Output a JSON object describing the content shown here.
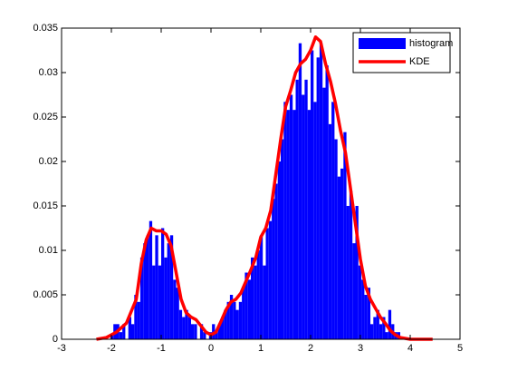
{
  "chart_data": {
    "type": "histogram",
    "xlim": [
      -3,
      5
    ],
    "xticks": [
      -3,
      -2,
      -1,
      0,
      1,
      2,
      3,
      4,
      5
    ],
    "ylim": [
      0,
      0.035
    ],
    "yticks": [
      0,
      0.005,
      0.01,
      0.015,
      0.02,
      0.025,
      0.03,
      0.035
    ],
    "legend": "northeast",
    "series": [
      {
        "name": "histogram",
        "type": "histogram",
        "color": "#0000ff",
        "bins": [
          -2.2,
          -2.14,
          -2.08,
          -2.02,
          -1.96,
          -1.9,
          -1.84,
          -1.78,
          -1.72,
          -1.66,
          -1.6,
          -1.54,
          -1.48,
          -1.42,
          -1.36,
          -1.3,
          -1.24,
          -1.18,
          -1.12,
          -1.06,
          -1,
          -0.94,
          -0.88,
          -0.82,
          -0.76,
          -0.7,
          -0.64,
          -0.58,
          -0.52,
          -0.46,
          -0.4,
          -0.34,
          -0.28,
          -0.22,
          -0.16,
          -0.1,
          -0.04,
          0.02,
          0.08,
          0.14,
          0.2,
          0.26,
          0.32,
          0.38,
          0.44,
          0.5,
          0.56,
          0.62,
          0.68,
          0.74,
          0.8,
          0.86,
          0.92,
          0.98,
          1.04,
          1.1,
          1.16,
          1.22,
          1.28,
          1.34,
          1.4,
          1.46,
          1.52,
          1.58,
          1.64,
          1.7,
          1.76,
          1.82,
          1.88,
          1.94,
          2,
          2.06,
          2.12,
          2.18,
          2.24,
          2.3,
          2.36,
          2.42,
          2.48,
          2.54,
          2.6,
          2.66,
          2.72,
          2.78,
          2.84,
          2.9,
          2.96,
          3.02,
          3.08,
          3.14,
          3.2,
          3.26,
          3.32,
          3.38,
          3.44,
          3.5,
          3.56,
          3.62,
          3.68,
          3.74,
          3.8
        ],
        "values": [
          0,
          0,
          0,
          0.0005,
          0.0017,
          0.0017,
          0.0008,
          0.0017,
          0,
          0.0025,
          0.0017,
          0.005,
          0.0042,
          0.0092,
          0.0108,
          0.0117,
          0.0133,
          0.0083,
          0.0117,
          0.0083,
          0.0125,
          0.0092,
          0.0108,
          0.0117,
          0.0067,
          0.0058,
          0.0033,
          0.0025,
          0.0033,
          0.0025,
          0.0017,
          0.0017,
          0,
          0.0017,
          0.0008,
          0,
          0.0008,
          0.0017,
          0.0008,
          0.0017,
          0.0025,
          0.0033,
          0.0042,
          0.005,
          0.0042,
          0.0033,
          0.0042,
          0.0058,
          0.0075,
          0.0067,
          0.0092,
          0.0083,
          0.01,
          0.0117,
          0.0083,
          0.0125,
          0.0133,
          0.0158,
          0.0175,
          0.02,
          0.0225,
          0.0267,
          0.0258,
          0.0275,
          0.0258,
          0.0292,
          0.0333,
          0.0275,
          0.0292,
          0.0258,
          0.0325,
          0.0267,
          0.0317,
          0.0333,
          0.0283,
          0.0308,
          0.0242,
          0.0267,
          0.0225,
          0.0183,
          0.0192,
          0.0233,
          0.015,
          0.0167,
          0.0108,
          0.015,
          0.0083,
          0.0067,
          0.005,
          0.0058,
          0.0017,
          0.0025,
          0.0033,
          0.0017,
          0.0025,
          0.0008,
          0.0033,
          0.0017,
          0.0008,
          0.0008
        ]
      },
      {
        "name": "KDE",
        "type": "line",
        "color": "#ff0000",
        "x": [
          -2.3,
          -2.1,
          -1.9,
          -1.7,
          -1.5,
          -1.4,
          -1.3,
          -1.2,
          -1.1,
          -1,
          -0.9,
          -0.8,
          -0.7,
          -0.6,
          -0.5,
          -0.4,
          -0.3,
          -0.2,
          -0.1,
          0,
          0.1,
          0.2,
          0.3,
          0.4,
          0.5,
          0.6,
          0.7,
          0.8,
          0.9,
          1,
          1.1,
          1.2,
          1.3,
          1.4,
          1.5,
          1.6,
          1.7,
          1.8,
          1.9,
          2,
          2.1,
          2.2,
          2.3,
          2.4,
          2.5,
          2.6,
          2.7,
          2.8,
          2.9,
          3,
          3.1,
          3.2,
          3.3,
          3.4,
          3.5,
          3.6,
          3.7,
          3.8,
          4,
          4.45
        ],
        "values": [
          0,
          0.0002,
          0.0008,
          0.0018,
          0.0045,
          0.0085,
          0.0112,
          0.0125,
          0.0122,
          0.0122,
          0.0118,
          0.0105,
          0.0075,
          0.0045,
          0.003,
          0.0025,
          0.0022,
          0.0015,
          0.0008,
          0.0005,
          0.0008,
          0.002,
          0.0033,
          0.0042,
          0.0045,
          0.0052,
          0.0065,
          0.0078,
          0.0092,
          0.0115,
          0.0125,
          0.0145,
          0.0185,
          0.0225,
          0.0262,
          0.028,
          0.03,
          0.031,
          0.0315,
          0.0325,
          0.034,
          0.0335,
          0.031,
          0.029,
          0.0265,
          0.0235,
          0.021,
          0.017,
          0.013,
          0.009,
          0.006,
          0.0045,
          0.0035,
          0.0025,
          0.0018,
          0.001,
          0.0005,
          0.0002,
          0,
          0
        ]
      }
    ]
  }
}
